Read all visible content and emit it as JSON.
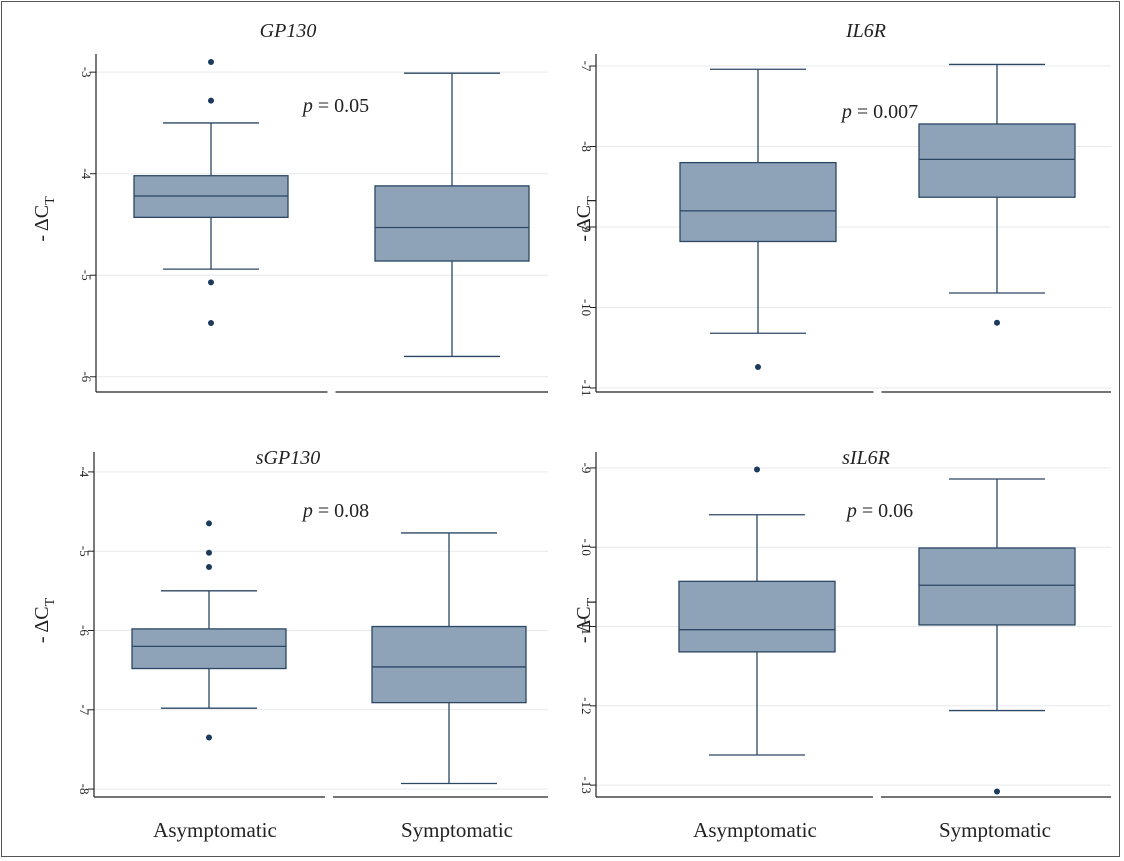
{
  "x_categories": [
    "Asymptomatic",
    "Symptomatic"
  ],
  "colors": {
    "box_fill": "#8ea3b8",
    "box_stroke": "#2b4764",
    "grid": "#e6e9ed",
    "outlier": "#1b3a5c"
  },
  "chart_data": [
    {
      "type": "box",
      "title": "GP130",
      "ylabel": "- ΔC_T",
      "p_label": "p = 0.05",
      "ylim": [
        -6.15,
        -2.9
      ],
      "yticks": [
        -3,
        -4,
        -5,
        -6
      ],
      "grid": true,
      "categories": [
        "Asymptomatic",
        "Symptomatic"
      ],
      "boxes": [
        {
          "whisker_high": -3.5,
          "q3": -4.02,
          "median": -4.22,
          "q1": -4.43,
          "whisker_low": -4.94,
          "outliers": [
            -2.9,
            -3.28,
            -5.07,
            -5.47
          ]
        },
        {
          "whisker_high": -3.01,
          "q3": -4.12,
          "median": -4.53,
          "q1": -4.86,
          "whisker_low": -5.8,
          "outliers": []
        }
      ]
    },
    {
      "type": "box",
      "title": "IL6R",
      "ylabel": "- ΔC_T",
      "p_label": "p = 0.007",
      "ylim": [
        -11.05,
        -6.95
      ],
      "yticks": [
        -7,
        -8,
        -9,
        -10,
        -11
      ],
      "grid": true,
      "categories": [
        "Asymptomatic",
        "Symptomatic"
      ],
      "boxes": [
        {
          "whisker_high": -7.04,
          "q3": -8.2,
          "median": -8.8,
          "q1": -9.18,
          "whisker_low": -10.32,
          "outliers": [
            -10.74
          ]
        },
        {
          "whisker_high": -6.98,
          "q3": -7.72,
          "median": -8.16,
          "q1": -8.63,
          "whisker_low": -9.82,
          "outliers": [
            -10.19
          ]
        }
      ]
    },
    {
      "type": "box",
      "title": "sGP130",
      "ylabel": "- ΔC_T",
      "p_label": "p = 0.08",
      "ylim": [
        -8.1,
        -3.85
      ],
      "yticks": [
        -4,
        -5,
        -6,
        -7,
        -8
      ],
      "grid": true,
      "categories": [
        "Asymptomatic",
        "Symptomatic"
      ],
      "boxes": [
        {
          "whisker_high": -5.5,
          "q3": -5.98,
          "median": -6.2,
          "q1": -6.48,
          "whisker_low": -6.98,
          "outliers": [
            -4.65,
            -5.02,
            -5.2,
            -7.35
          ]
        },
        {
          "whisker_high": -4.77,
          "q3": -5.95,
          "median": -6.46,
          "q1": -6.91,
          "whisker_low": -7.93,
          "outliers": []
        }
      ]
    },
    {
      "type": "box",
      "title": "sIL6R",
      "ylabel": "- ΔC_T",
      "p_label": "p = 0.06",
      "ylim": [
        -13.15,
        -8.9
      ],
      "yticks": [
        -9,
        -10,
        -11,
        -12,
        -13
      ],
      "grid": true,
      "categories": [
        "Asymptomatic",
        "Symptomatic"
      ],
      "boxes": [
        {
          "whisker_high": -9.59,
          "q3": -10.43,
          "median": -11.04,
          "q1": -11.32,
          "whisker_low": -12.62,
          "outliers": [
            -9.02
          ]
        },
        {
          "whisker_high": -9.14,
          "q3": -10.01,
          "median": -10.48,
          "q1": -10.98,
          "whisker_low": -12.06,
          "outliers": [
            -13.08
          ]
        }
      ]
    }
  ]
}
